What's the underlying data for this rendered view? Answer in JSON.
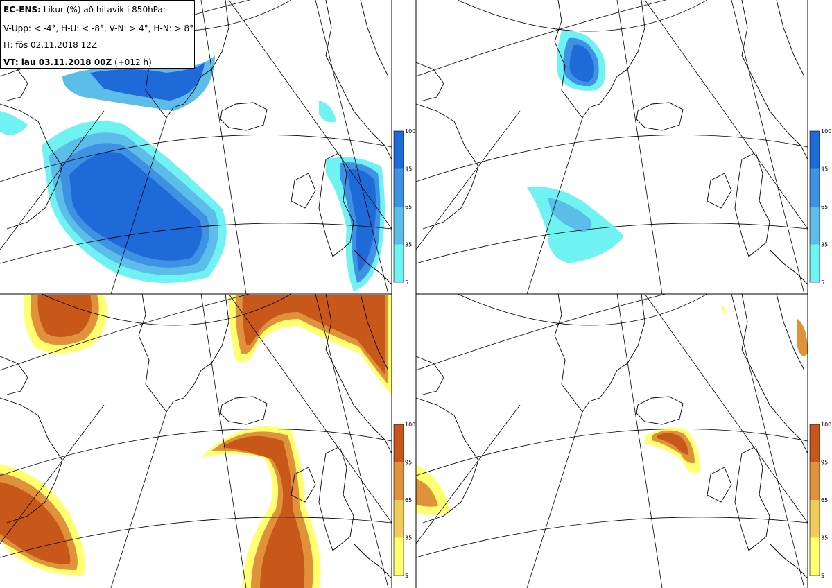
{
  "header": {
    "model": "EC-ENS:",
    "title": "Líkur (%) að hitavik í 850hPa:",
    "legend_line": "V-Upp: < -4°, H-U: < -8°, V-N: > 4°, H-N: > 8°",
    "issue_time": "IT: fös 02.11.2018 12Z",
    "valid_label": "VT: lau 03.11.2018 00Z",
    "lead": "(+012 h)"
  },
  "panels": [
    {
      "id": "V-Upp",
      "scale": "blue"
    },
    {
      "id": "H-U",
      "scale": "blue"
    },
    {
      "id": "V-N",
      "scale": "red"
    },
    {
      "id": "H-N",
      "scale": "red"
    }
  ],
  "colorbar": {
    "ticks": [
      "100",
      "95",
      "65",
      "35",
      "5"
    ],
    "blue_colors": [
      "#1e6ad8",
      "#3f91e4",
      "#5bbde8",
      "#6ff2f2"
    ],
    "red_colors": [
      "#c8581a",
      "#e0923a",
      "#f2cc5a",
      "#ffff70"
    ]
  },
  "colors": {
    "blue_dark": "#1e6ad8",
    "blue_mid": "#3f91e4",
    "blue_light": "#5bbde8",
    "cyan": "#6ff2f2",
    "red_dark": "#c8581a",
    "orange": "#e0923a",
    "yellow_dark": "#f2cc5a",
    "yellow": "#ffff70"
  }
}
